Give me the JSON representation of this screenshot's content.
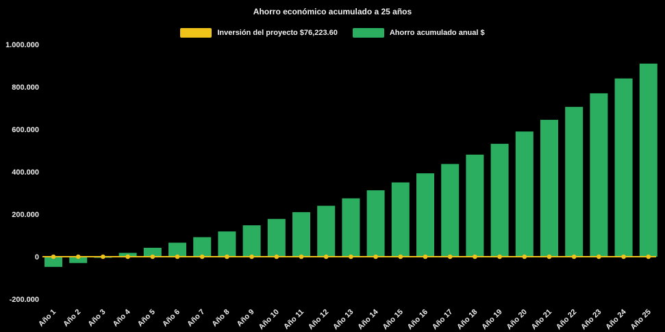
{
  "page": {
    "background_color": "#000000",
    "text_color": "#f2f2f2"
  },
  "chart_data": {
    "type": "bar",
    "title": "Ahorro económico acumulado a 25 años",
    "xlabel": "",
    "ylabel": "",
    "ylim": [
      -200000,
      1000000
    ],
    "grid": false,
    "legend_position": "top",
    "categories": [
      "Año 1",
      "Año 2",
      "Año 3",
      "Año 4",
      "Año 5",
      "Año 6",
      "Año 7",
      "Año 8",
      "Año 9",
      "Año 10",
      "Año 11",
      "Año 12",
      "Año 13",
      "Año 14",
      "Año 15",
      "Año 16",
      "Año 17",
      "Año 18",
      "Año 19",
      "Año 20",
      "Año 21",
      "Año 22",
      "Año 23",
      "Año 24",
      "Año 25"
    ],
    "y_ticks": [
      {
        "value": 1000000,
        "label": "1.000.000"
      },
      {
        "value": 800000,
        "label": "800.000"
      },
      {
        "value": 600000,
        "label": "600.000"
      },
      {
        "value": 400000,
        "label": "400.000"
      },
      {
        "value": 200000,
        "label": "200.000"
      },
      {
        "value": 0,
        "label": "0"
      },
      {
        "value": -200000,
        "label": "-200.000"
      }
    ],
    "series": [
      {
        "name": "Inversión del proyecto $76,223.60",
        "type": "line",
        "color": "#efc319",
        "values": [
          0,
          0,
          0,
          0,
          0,
          0,
          0,
          0,
          0,
          0,
          0,
          0,
          0,
          0,
          0,
          0,
          0,
          0,
          0,
          0,
          0,
          0,
          0,
          0,
          0
        ]
      },
      {
        "name": "Ahorro acumulado anual $",
        "type": "bar",
        "color": "#2bae60",
        "values": [
          -48000,
          -30000,
          -5000,
          18000,
          42000,
          66000,
          92000,
          119000,
          148000,
          178000,
          210000,
          240000,
          275000,
          313000,
          350000,
          393000,
          437000,
          481000,
          532000,
          590000,
          645000,
          706000,
          770000,
          840000,
          910000
        ]
      }
    ]
  }
}
